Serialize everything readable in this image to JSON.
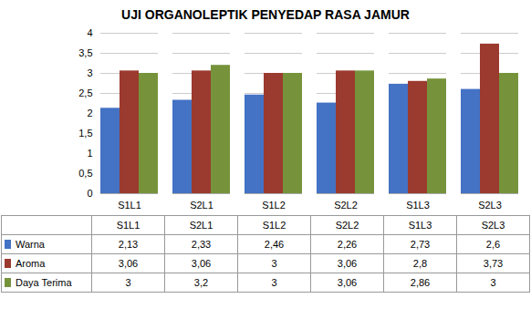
{
  "chart_data": {
    "type": "bar",
    "title": "UJI ORGANOLEPTIK PENYEDAP RASA JAMUR",
    "categories": [
      "S1L1",
      "S2L1",
      "S1L2",
      "S2L2",
      "S1L3",
      "S2L3"
    ],
    "series": [
      {
        "name": "Warna",
        "color": "#4472C4",
        "values": [
          2.13,
          2.33,
          2.46,
          2.26,
          2.73,
          2.6
        ],
        "value_labels": [
          "2,13",
          "2,33",
          "2,46",
          "2,26",
          "2,73",
          "2,6"
        ]
      },
      {
        "name": "Aroma",
        "color": "#9B3A2E",
        "values": [
          3.06,
          3.06,
          3.0,
          3.06,
          2.8,
          3.73
        ],
        "value_labels": [
          "3,06",
          "3,06",
          "3",
          "3,06",
          "2,8",
          "3,73"
        ]
      },
      {
        "name": "Daya Terima",
        "color": "#76933C",
        "values": [
          3.0,
          3.2,
          3.0,
          3.06,
          2.86,
          3.0
        ],
        "value_labels": [
          "3",
          "3,2",
          "3",
          "3,06",
          "2,86",
          "3"
        ]
      }
    ],
    "ylim": [
      0,
      4
    ],
    "yticks": [
      0,
      {
        "value": 0.5,
        "label": "0,5"
      },
      1,
      {
        "value": 1.5,
        "label": "1,5"
      },
      2,
      {
        "value": 2.5,
        "label": "2,5"
      },
      3,
      {
        "value": 3.5,
        "label": "3,5"
      },
      4
    ],
    "grid": true
  }
}
